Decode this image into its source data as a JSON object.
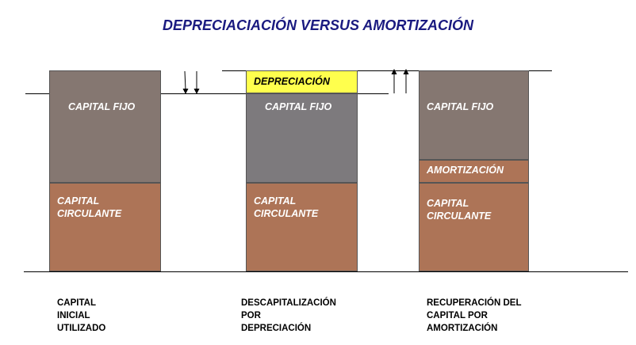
{
  "title": "DEPRECIACIACIÓN VERSUS AMORTIZACIÓN",
  "colors": {
    "capital_fijo": "#857771",
    "capital_fijo_middle": "#7d7a7d",
    "capital_circulante": "#ad7457",
    "depreciacion": "#ffff4d",
    "amortizacion": "#ad7457",
    "title": "#1a1a80"
  },
  "columns": [
    {
      "fijo_label": "CAPITAL FIJO",
      "circulante_label": "CAPITAL\nCIRCULANTE",
      "caption": "CAPITAL\nINICIAL\nUTILIZADO",
      "arrows": "down"
    },
    {
      "extra_label": "DEPRECIACIÓN",
      "fijo_label": "CAPITAL FIJO",
      "circulante_label": "CAPITAL\nCIRCULANTE",
      "caption": "DESCAPITALIZACIÓN\nPOR\nDEPRECIACIÓN",
      "arrows": "up"
    },
    {
      "fijo_label": "CAPITAL FIJO",
      "extra_label": "AMORTIZACIÓN",
      "circulante_label": "CAPITAL\nCIRCULANTE",
      "caption": "RECUPERACIÓN DEL\nCAPITAL POR\nAMORTIZACIÓN"
    }
  ]
}
